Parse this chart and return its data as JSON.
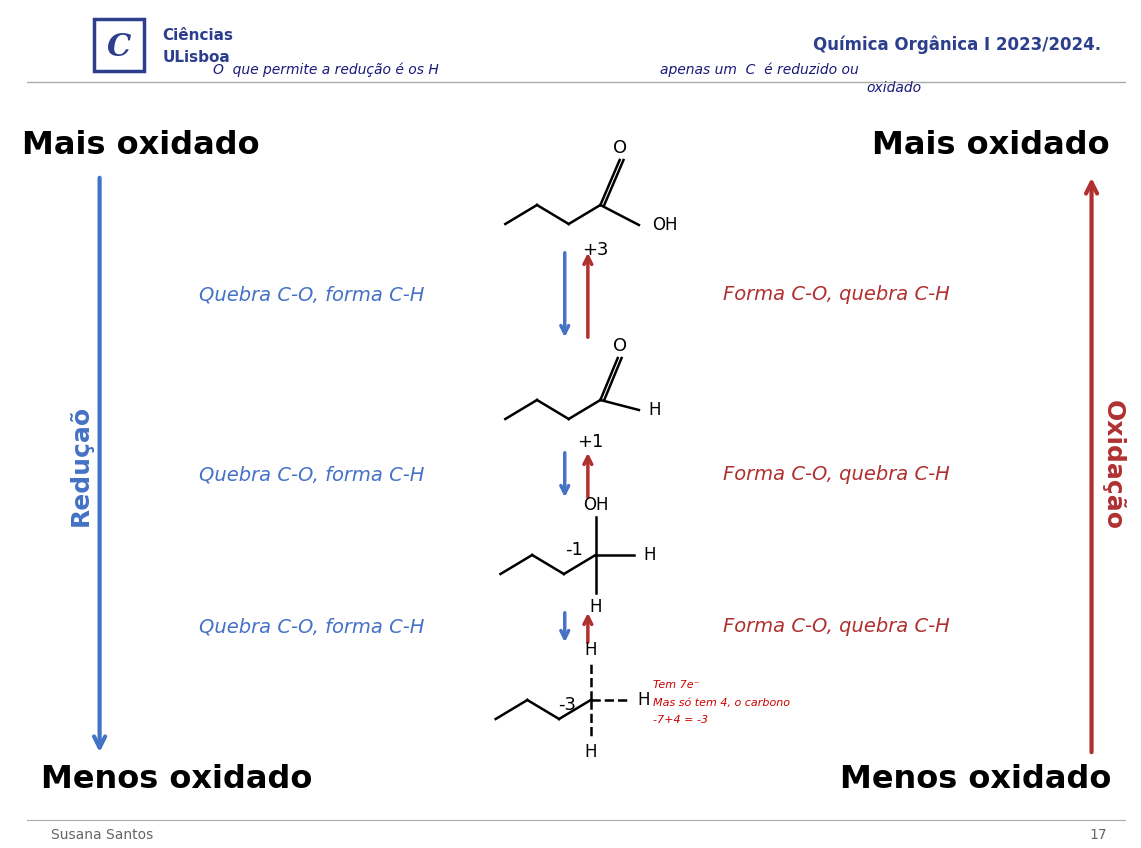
{
  "bg_color": "#ffffff",
  "title_color": "#2c3e8c",
  "title_text": "Química Orgânica I 2023/2024.",
  "mais_oxidado": "Mais oxidado",
  "menos_oxidado": "Menos oxidado",
  "reducao_text": "Reduçaõ",
  "oxidacao_text": "Oxidação",
  "reducao_color": "#4472c4",
  "oxidacao_color": "#b03030",
  "quebra_text": "Quebra C-O, forma C-H",
  "forma_text": "Forma C-O, quebra C-H",
  "quebra_color": "#4472c4",
  "forma_color": "#b03030",
  "arrow_down_color": "#4472c4",
  "arrow_up_color": "#b03030",
  "footer_text": "Susana Santos",
  "footer_page": "17",
  "logo_color": "#2c3e8c",
  "handwritten_color": "#1a1a7a",
  "note_color": "#cc0000"
}
